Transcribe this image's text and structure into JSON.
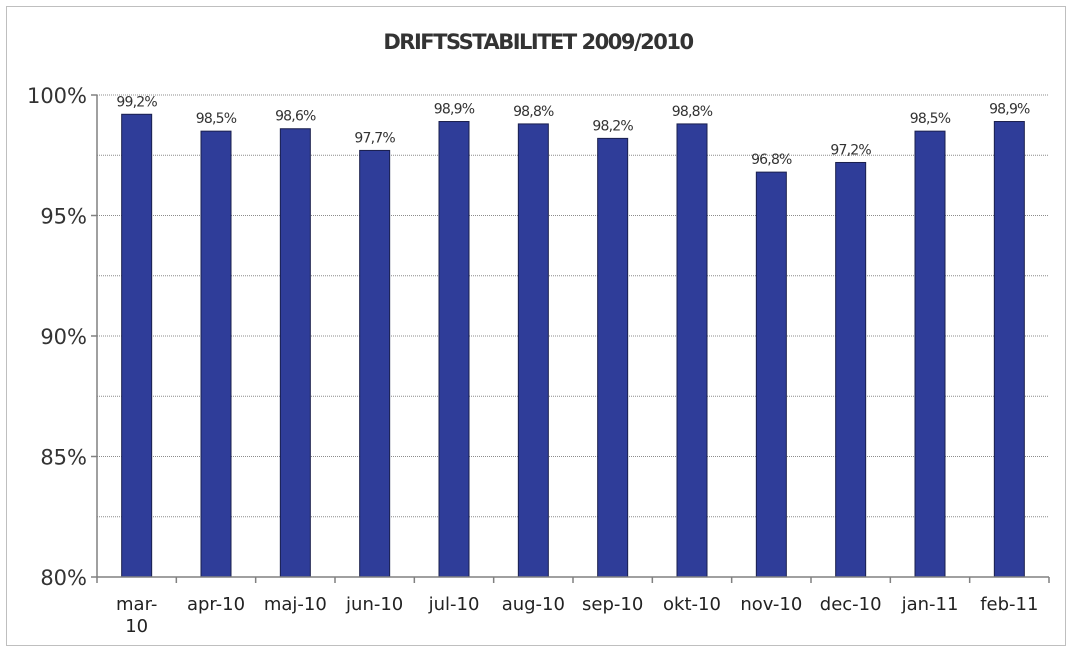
{
  "chart_data": {
    "type": "bar",
    "title": "DRIFTSSTABILITET 2009/2010",
    "xlabel": "",
    "ylabel": "",
    "categories": [
      "mar-10",
      "apr-10",
      "maj-10",
      "jun-10",
      "jul-10",
      "aug-10",
      "sep-10",
      "okt-10",
      "nov-10",
      "dec-10",
      "jan-11",
      "feb-11"
    ],
    "category_lines": [
      [
        "mar-",
        "10"
      ],
      [
        "apr-10"
      ],
      [
        "maj-10"
      ],
      [
        "jun-10"
      ],
      [
        "jul-10"
      ],
      [
        "aug-10"
      ],
      [
        "sep-10"
      ],
      [
        "okt-10"
      ],
      [
        "nov-10"
      ],
      [
        "dec-10"
      ],
      [
        "jan-11"
      ],
      [
        "feb-11"
      ]
    ],
    "values": [
      99.2,
      98.5,
      98.6,
      97.7,
      98.9,
      98.8,
      98.2,
      98.8,
      96.8,
      97.2,
      98.5,
      98.9
    ],
    "data_labels": [
      "99,2%",
      "98,5%",
      "98,6%",
      "97,7%",
      "98,9%",
      "98,8%",
      "98,2%",
      "98,8%",
      "96,8%",
      "97,2%",
      "98,5%",
      "98,9%"
    ],
    "ylim": [
      80,
      100
    ],
    "yticks": [
      80,
      85,
      90,
      95,
      100
    ],
    "ytick_labels": [
      "80%",
      "85%",
      "90%",
      "95%",
      "100%"
    ],
    "gridlines": [
      82.5,
      85,
      87.5,
      90,
      92.5,
      95,
      97.5,
      100
    ],
    "grid": true,
    "legend": "none",
    "colors": {
      "bar": "#2f3d99",
      "bar_edge": "#1a1f4d",
      "grid": "#8c8c8c",
      "axis": "#808080"
    }
  }
}
